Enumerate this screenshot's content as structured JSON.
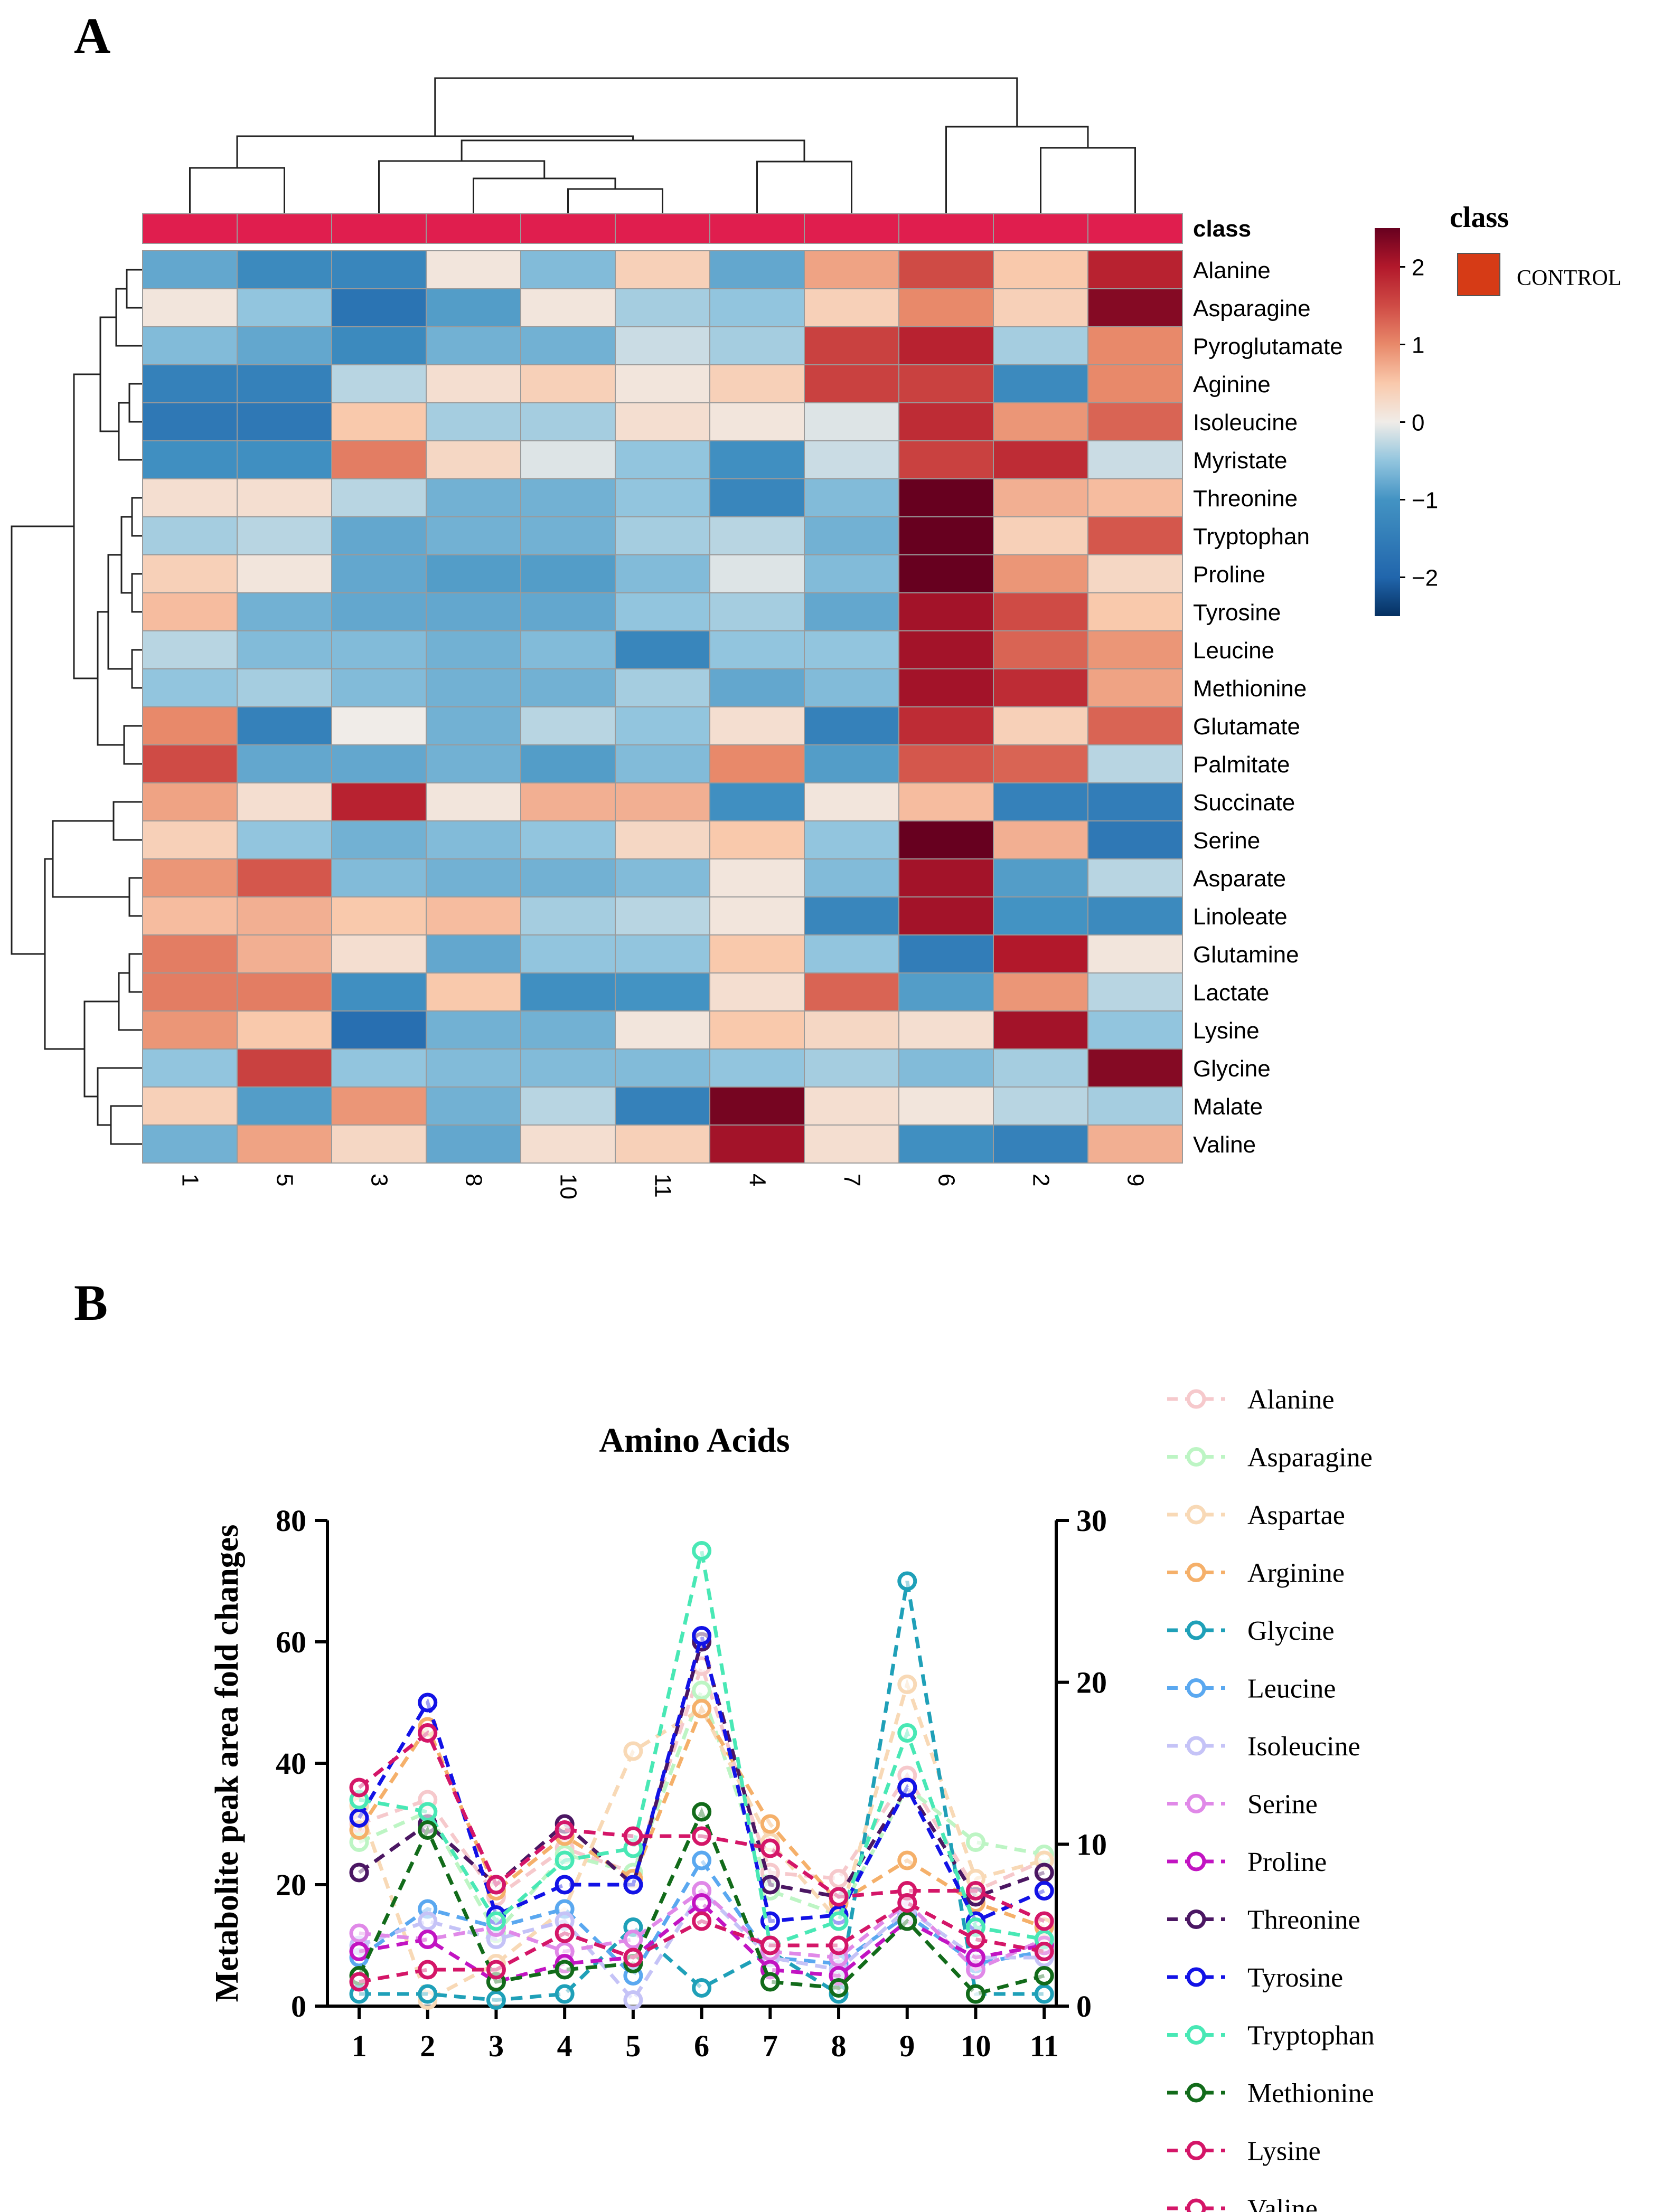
{
  "panels": {
    "a": "A",
    "b": "B"
  },
  "chart_data": [
    {
      "type": "heatmap",
      "columns": [
        "1",
        "5",
        "3",
        "8",
        "10",
        "11",
        "4",
        "7",
        "6",
        "2",
        "9"
      ],
      "rows": [
        "Alanine",
        "Asparagine",
        "Pyroglutamate",
        "Aginine",
        "Isoleucine",
        "Myristate",
        "Threonine",
        "Tryptophan",
        "Proline",
        "Tyrosine",
        "Leucine",
        "Methionine",
        "Glutamate",
        "Palmitate",
        "Succinate",
        "Serine",
        "Asparate",
        "Linoleate",
        "Glutamine",
        "Lactate",
        "Lysine",
        "Glycine",
        "Malate",
        "Valine"
      ],
      "values": [
        [
          -0.8,
          -1.2,
          -1.3,
          0.1,
          -0.6,
          0.4,
          -0.8,
          0.8,
          1.5,
          0.5,
          1.9
        ],
        [
          0.1,
          -0.5,
          -1.7,
          -0.9,
          0.1,
          -0.4,
          -0.5,
          0.4,
          1.0,
          0.4,
          2.3
        ],
        [
          -0.6,
          -0.8,
          -1.2,
          -0.7,
          -0.7,
          -0.2,
          -0.4,
          1.6,
          1.9,
          -0.4,
          1.0
        ],
        [
          -1.4,
          -1.4,
          -0.3,
          0.2,
          0.4,
          0.1,
          0.4,
          1.6,
          1.6,
          -1.2,
          1.0
        ],
        [
          -1.6,
          -1.6,
          0.5,
          -0.4,
          -0.4,
          0.2,
          0.1,
          -0.1,
          1.8,
          0.9,
          1.3
        ],
        [
          -1.1,
          -1.1,
          1.1,
          0.3,
          -0.1,
          -0.5,
          -1.1,
          -0.2,
          1.6,
          1.8,
          -0.2
        ],
        [
          0.2,
          0.2,
          -0.3,
          -0.7,
          -0.7,
          -0.5,
          -1.3,
          -0.6,
          2.5,
          0.7,
          0.6
        ],
        [
          -0.4,
          -0.3,
          -0.8,
          -0.7,
          -0.7,
          -0.4,
          -0.3,
          -0.7,
          2.5,
          0.4,
          1.4
        ],
        [
          0.4,
          0.1,
          -0.8,
          -0.9,
          -0.9,
          -0.6,
          -0.1,
          -0.6,
          2.5,
          0.9,
          0.3
        ],
        [
          0.6,
          -0.7,
          -0.8,
          -0.8,
          -0.8,
          -0.5,
          -0.4,
          -0.8,
          2.1,
          1.5,
          0.5
        ],
        [
          -0.3,
          -0.6,
          -0.6,
          -0.7,
          -0.6,
          -1.3,
          -0.5,
          -0.5,
          2.1,
          1.3,
          0.9
        ],
        [
          -0.5,
          -0.4,
          -0.6,
          -0.7,
          -0.7,
          -0.4,
          -0.8,
          -0.6,
          2.1,
          1.8,
          0.8
        ],
        [
          1.0,
          -1.4,
          0.0,
          -0.7,
          -0.3,
          -0.5,
          0.2,
          -1.4,
          1.8,
          0.4,
          1.3
        ],
        [
          1.5,
          -0.8,
          -0.8,
          -0.7,
          -0.9,
          -0.6,
          1.0,
          -0.9,
          1.4,
          1.3,
          -0.3
        ],
        [
          0.8,
          0.2,
          1.9,
          0.1,
          0.7,
          0.7,
          -1.1,
          0.1,
          0.6,
          -1.4,
          -1.5
        ],
        [
          0.4,
          -0.5,
          -0.7,
          -0.6,
          -0.5,
          0.3,
          0.5,
          -0.5,
          2.5,
          0.7,
          -1.6
        ],
        [
          0.9,
          1.4,
          -0.6,
          -0.7,
          -0.7,
          -0.6,
          0.1,
          -0.6,
          2.1,
          -0.9,
          -0.3
        ],
        [
          0.6,
          0.7,
          0.5,
          0.6,
          -0.4,
          -0.3,
          0.1,
          -1.3,
          2.1,
          -1.0,
          -1.2
        ],
        [
          1.1,
          0.7,
          0.2,
          -0.8,
          -0.5,
          -0.5,
          0.5,
          -0.5,
          -1.5,
          2.0,
          0.1
        ],
        [
          1.1,
          1.1,
          -1.1,
          0.5,
          -1.1,
          -1.0,
          0.2,
          1.3,
          -0.9,
          0.9,
          -0.3
        ],
        [
          0.9,
          0.5,
          -1.8,
          -0.7,
          -0.7,
          0.1,
          0.5,
          0.3,
          0.2,
          2.1,
          -0.5
        ],
        [
          -0.5,
          1.6,
          -0.5,
          -0.6,
          -0.6,
          -0.6,
          -0.5,
          -0.4,
          -0.6,
          -0.4,
          2.3
        ],
        [
          0.4,
          -0.9,
          0.9,
          -0.7,
          -0.3,
          -1.4,
          2.4,
          0.2,
          0.1,
          -0.3,
          -0.4
        ],
        [
          -0.7,
          0.8,
          0.3,
          -0.8,
          0.2,
          0.4,
          2.1,
          0.2,
          -1.1,
          -1.4,
          0.7
        ]
      ],
      "class_row_label": "class",
      "colorbar": {
        "ticks": [
          "2",
          "1",
          "0",
          "−1",
          "−2"
        ],
        "range": [
          -2.5,
          2.5
        ]
      },
      "legend": {
        "title": "class",
        "entries": [
          {
            "label": "CONTROL",
            "color": "#d63b16"
          }
        ]
      },
      "colors": {
        "class_bar": "#e01e4e",
        "high": "#67001f",
        "mid": "#f5f5f5",
        "low": "#053061",
        "grid": "#9a9a9a"
      }
    },
    {
      "type": "line",
      "title": "Amino Acids",
      "ylabel": "Metabolite peak area fold changes",
      "x": [
        1,
        2,
        3,
        4,
        5,
        6,
        7,
        8,
        9,
        10,
        11
      ],
      "xticks": [
        "1",
        "2",
        "3",
        "4",
        "5",
        "6",
        "7",
        "8",
        "9",
        "10",
        "11"
      ],
      "ylim": [
        0,
        80
      ],
      "yticks": [
        "0",
        "20",
        "40",
        "60",
        "80"
      ],
      "y2lim": [
        0,
        30
      ],
      "y2ticks": [
        "0",
        "10",
        "20",
        "30"
      ],
      "series": [
        {
          "name": "Alanine",
          "color": "#f6c9cc",
          "values": [
            30,
            34,
            18,
            26,
            22,
            56,
            22,
            21,
            38,
            19,
            24
          ]
        },
        {
          "name": "Asparagine",
          "color": "#bdf5c4",
          "values": [
            27,
            32,
            12,
            25,
            22,
            52,
            19,
            15,
            36,
            27,
            25
          ]
        },
        {
          "name": "Aspartae",
          "color": "#f8d9b6",
          "values": [
            33,
            1,
            7,
            16,
            42,
            49,
            27,
            14,
            53,
            21,
            24
          ]
        },
        {
          "name": "Arginine",
          "color": "#f5b06a",
          "values": [
            29,
            46,
            19,
            28,
            21,
            49,
            30,
            17,
            24,
            17,
            13
          ]
        },
        {
          "name": "Glycine",
          "color": "#1fa0b8",
          "values": [
            2,
            2,
            1,
            2,
            13,
            3,
            9,
            2,
            70,
            2,
            2
          ]
        },
        {
          "name": "Leucine",
          "color": "#5aa8f0",
          "values": [
            8,
            16,
            13,
            16,
            5,
            24,
            8,
            7,
            15,
            7,
            9
          ]
        },
        {
          "name": "Isoleucine",
          "color": "#c5c3f7",
          "values": [
            10,
            14,
            11,
            14,
            1,
            19,
            8,
            6,
            16,
            8,
            8
          ]
        },
        {
          "name": "Serine",
          "color": "#e089e8",
          "values": [
            12,
            11,
            13,
            9,
            11,
            19,
            9,
            8,
            17,
            6,
            11
          ]
        },
        {
          "name": "Proline",
          "color": "#c214c2",
          "values": [
            9,
            11,
            4,
            7,
            8,
            17,
            6,
            5,
            14,
            8,
            10
          ]
        },
        {
          "name": "Threonine",
          "color": "#4b1763",
          "values": [
            22,
            30,
            20,
            30,
            20,
            60,
            20,
            18,
            36,
            18,
            22
          ]
        },
        {
          "name": "Tyrosine",
          "color": "#1212e6",
          "values": [
            31,
            50,
            15,
            20,
            20,
            61,
            14,
            15,
            36,
            14,
            19
          ]
        },
        {
          "name": "Tryptophan",
          "color": "#49e8b5",
          "values": [
            34,
            32,
            14,
            24,
            26,
            75,
            10,
            14,
            45,
            13,
            11
          ]
        },
        {
          "name": "Methionine",
          "color": "#126b1a",
          "values": [
            5,
            29,
            4,
            6,
            7,
            32,
            4,
            3,
            14,
            2,
            5
          ]
        },
        {
          "name": "Lysine",
          "color": "#d41668",
          "values": [
            36,
            45,
            20,
            29,
            28,
            28,
            26,
            18,
            19,
            19,
            14
          ]
        },
        {
          "name": "Valine",
          "color": "#d41668",
          "values": [
            4,
            6,
            6,
            12,
            8,
            14,
            10,
            10,
            17,
            11,
            9
          ]
        }
      ]
    }
  ]
}
